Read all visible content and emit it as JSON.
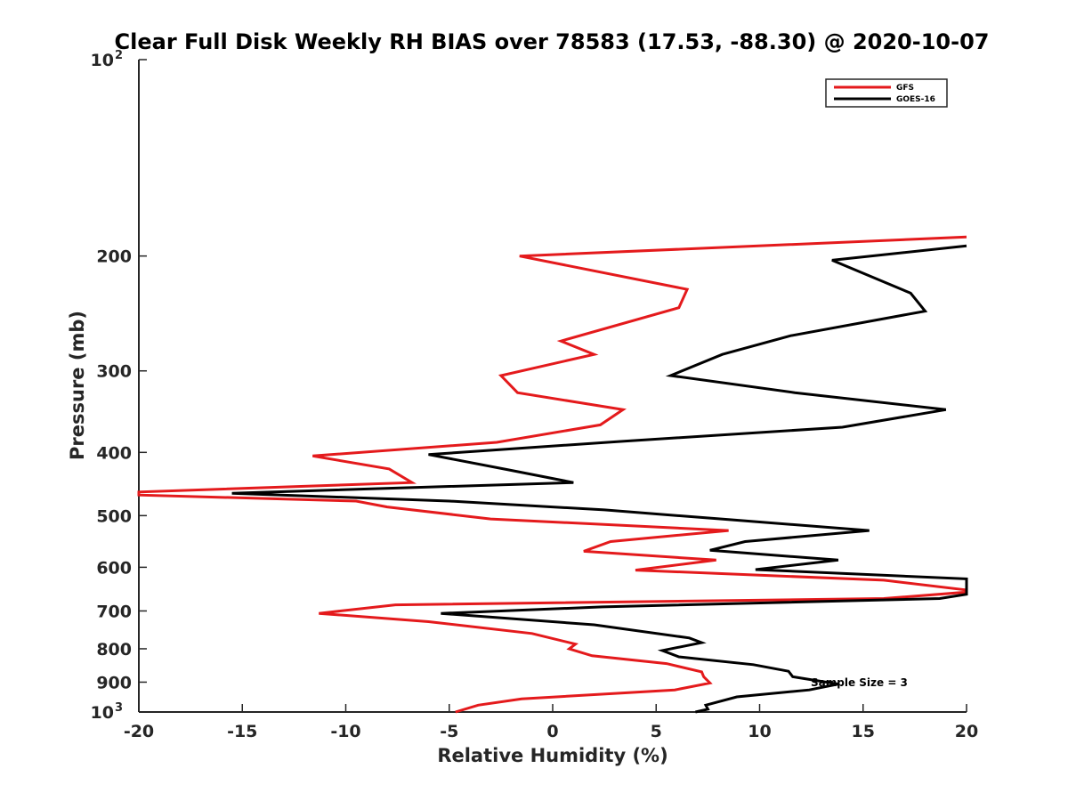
{
  "chart_data": {
    "type": "line",
    "title": "Clear Full Disk Weekly RH BIAS over 78583 (17.53, -88.30) @ 2020-10-07",
    "xlabel": "Relative Humidity (%)",
    "ylabel": "Pressure (mb)",
    "xlim": [
      -20,
      20
    ],
    "ylim": [
      100,
      1000
    ],
    "y_scale": "log",
    "y_reversed": true,
    "grid": false,
    "legend_position": "top-right",
    "annotation": "Sample Size = 3",
    "x_ticks": [
      "-20",
      "-15",
      "-10",
      "-5",
      "0",
      "5",
      "10",
      "15",
      "20"
    ],
    "y_ticks": [
      {
        "value": 100,
        "label": "10",
        "sup": "2"
      },
      {
        "value": 200,
        "label": "200",
        "sup": ""
      },
      {
        "value": 300,
        "label": "300",
        "sup": ""
      },
      {
        "value": 400,
        "label": "400",
        "sup": ""
      },
      {
        "value": 500,
        "label": "500",
        "sup": ""
      },
      {
        "value": 600,
        "label": "600",
        "sup": ""
      },
      {
        "value": 700,
        "label": "700",
        "sup": ""
      },
      {
        "value": 800,
        "label": "800",
        "sup": ""
      },
      {
        "value": 900,
        "label": "900",
        "sup": ""
      },
      {
        "value": 1000,
        "label": "10",
        "sup": "3"
      }
    ],
    "series": [
      {
        "name": "GFS",
        "color": "#e41a1c",
        "points": [
          [
            20,
            187
          ],
          [
            -1.6,
            200
          ],
          [
            6.5,
            225
          ],
          [
            6.1,
            240
          ],
          [
            0.4,
            270
          ],
          [
            2.0,
            283
          ],
          [
            -2.5,
            305
          ],
          [
            -1.7,
            324
          ],
          [
            3.4,
            344
          ],
          [
            2.3,
            363
          ],
          [
            -2.7,
            386
          ],
          [
            -11.6,
            405
          ],
          [
            -7.9,
            424
          ],
          [
            -6.8,
            445
          ],
          [
            -20,
            460
          ],
          [
            -20,
            465
          ],
          [
            -9.5,
            475
          ],
          [
            -8,
            485
          ],
          [
            -3,
            506
          ],
          [
            8.5,
            527
          ],
          [
            2.8,
            548
          ],
          [
            1.5,
            567
          ],
          [
            7.9,
            585
          ],
          [
            4.0,
            606
          ],
          [
            16,
            628
          ],
          [
            20,
            650
          ],
          [
            20,
            655
          ],
          [
            16,
            670
          ],
          [
            -7.6,
            685
          ],
          [
            -11.3,
            706
          ],
          [
            -6,
            727
          ],
          [
            -1,
            758
          ],
          [
            1.1,
            787
          ],
          [
            0.8,
            800
          ],
          [
            1.9,
            820
          ],
          [
            5.5,
            843
          ],
          [
            7.2,
            868
          ],
          [
            7.3,
            883
          ],
          [
            7.6,
            903
          ],
          [
            5.9,
            925
          ],
          [
            -1.5,
            955
          ],
          [
            -3.6,
            976
          ],
          [
            -4.7,
            1000
          ]
        ]
      },
      {
        "name": "GOES-16",
        "color": "#000000",
        "points": [
          [
            20,
            193
          ],
          [
            13.5,
            203
          ],
          [
            17.3,
            228
          ],
          [
            18.0,
            243
          ],
          [
            11.5,
            265
          ],
          [
            8.2,
            283
          ],
          [
            5.7,
            305
          ],
          [
            11.7,
            324
          ],
          [
            19.0,
            344
          ],
          [
            14.0,
            366
          ],
          [
            3.2,
            385
          ],
          [
            -6.0,
            403
          ],
          [
            -2.2,
            425
          ],
          [
            1.0,
            445
          ],
          [
            -15.5,
            462
          ],
          [
            -5,
            475
          ],
          [
            2.5,
            490
          ],
          [
            8.5,
            507
          ],
          [
            15.3,
            527
          ],
          [
            9.3,
            548
          ],
          [
            7.6,
            565
          ],
          [
            13.8,
            585
          ],
          [
            9.8,
            605
          ],
          [
            20,
            625
          ],
          [
            20,
            660
          ],
          [
            18.7,
            670
          ],
          [
            2.4,
            690
          ],
          [
            -5.4,
            706
          ],
          [
            2.0,
            735
          ],
          [
            6.6,
            770
          ],
          [
            7.2,
            783
          ],
          [
            5.3,
            805
          ],
          [
            6.1,
            823
          ],
          [
            9.7,
            846
          ],
          [
            11.4,
            866
          ],
          [
            11.6,
            883
          ],
          [
            13.8,
            906
          ],
          [
            12.4,
            925
          ],
          [
            8.9,
            948
          ],
          [
            7.4,
            976
          ],
          [
            7.5,
            990
          ],
          [
            6.9,
            1000
          ]
        ]
      }
    ]
  }
}
